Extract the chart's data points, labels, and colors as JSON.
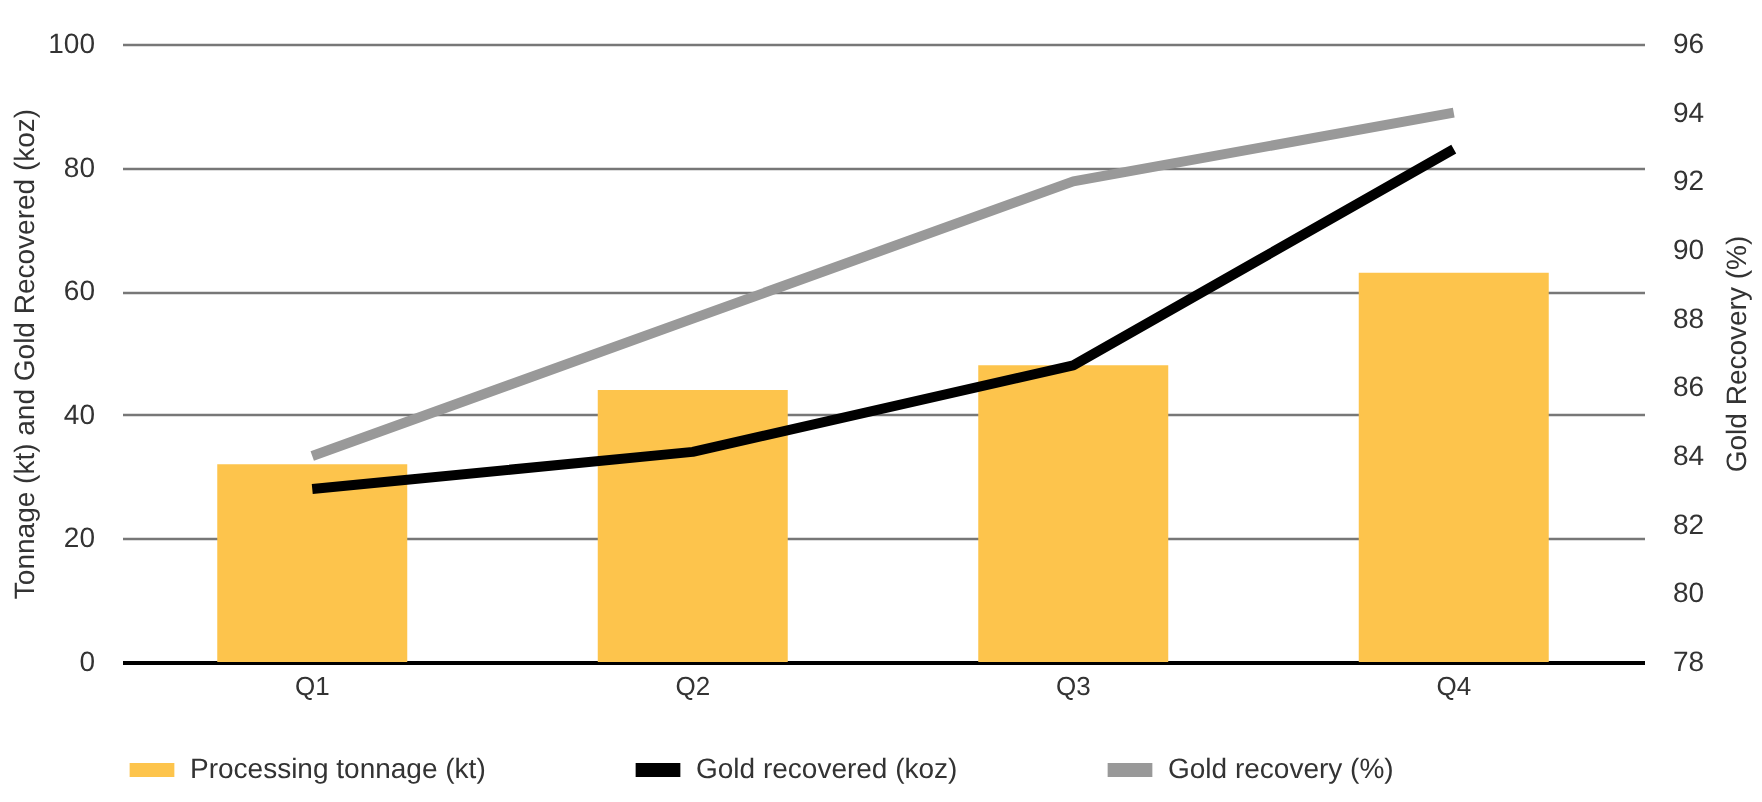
{
  "chart_data": {
    "type": "bar",
    "categories": [
      "Q1",
      "Q2",
      "Q3",
      "Q4"
    ],
    "series": [
      {
        "name": "Processing tonnage (kt)",
        "color": "#fdc44c",
        "values": [
          32,
          44,
          48,
          63
        ]
      },
      {
        "name": "Gold recovered (koz)",
        "type": "line",
        "color": "#000000",
        "values": [
          28,
          34,
          48,
          83
        ]
      },
      {
        "name": "Gold recovery (%)",
        "type": "line",
        "color": "#999999",
        "axis": "y2",
        "values": [
          84,
          88,
          92,
          94
        ]
      }
    ],
    "ylabel": "Tonnage (kt) and Gold Recovered (koz)",
    "y2label": "Gold Recovery (%)",
    "ylim": [
      0,
      100
    ],
    "yticks": [
      0,
      20,
      40,
      60,
      80,
      100
    ],
    "y2lim": [
      78,
      96
    ],
    "y2ticks": [
      78,
      80,
      82,
      84,
      86,
      88,
      90,
      92,
      94,
      96
    ],
    "grid": "y",
    "legend": "bottom"
  }
}
